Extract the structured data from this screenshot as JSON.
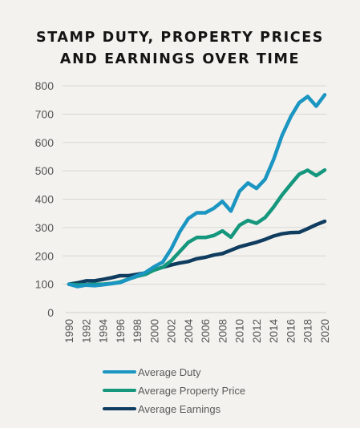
{
  "chart_data": {
    "type": "line",
    "title_line1": "STAMP DUTY, PROPERTY PRICES",
    "title_line2": "AND EARNINGS OVER TIME",
    "ylim": [
      0,
      800
    ],
    "yticks": [
      0,
      100,
      200,
      300,
      400,
      500,
      600,
      700,
      800
    ],
    "xlim": [
      1990,
      2020
    ],
    "xticks": [
      1990,
      1992,
      1994,
      1996,
      1998,
      2000,
      2002,
      2004,
      2006,
      2008,
      2010,
      2012,
      2014,
      2016,
      2018,
      2020
    ],
    "x": [
      1990,
      1991,
      1992,
      1993,
      1994,
      1995,
      1996,
      1997,
      1998,
      1999,
      2000,
      2001,
      2002,
      2003,
      2004,
      2005,
      2006,
      2007,
      2008,
      2009,
      2010,
      2011,
      2012,
      2013,
      2014,
      2015,
      2016,
      2017,
      2018,
      2019,
      2020
    ],
    "series": [
      {
        "name": "Average Duty",
        "color": "#1b95c1",
        "values": [
          100,
          92,
          97,
          95,
          98,
          102,
          106,
          118,
          130,
          142,
          162,
          178,
          225,
          285,
          332,
          352,
          352,
          368,
          392,
          358,
          428,
          457,
          438,
          470,
          540,
          625,
          690,
          740,
          762,
          728,
          768
        ]
      },
      {
        "name": "Average Property Price",
        "color": "#15977d",
        "values": [
          100,
          98,
          98,
          100,
          100,
          103,
          108,
          118,
          128,
          135,
          150,
          160,
          183,
          215,
          248,
          265,
          265,
          272,
          288,
          266,
          308,
          325,
          315,
          335,
          372,
          415,
          452,
          488,
          502,
          483,
          503
        ]
      },
      {
        "name": "Average Earnings",
        "color": "#0f3c5f",
        "values": [
          100,
          105,
          112,
          112,
          117,
          123,
          130,
          130,
          135,
          140,
          150,
          160,
          168,
          175,
          180,
          190,
          195,
          203,
          208,
          220,
          232,
          240,
          248,
          258,
          270,
          278,
          282,
          283,
          296,
          310,
          322
        ]
      }
    ]
  }
}
